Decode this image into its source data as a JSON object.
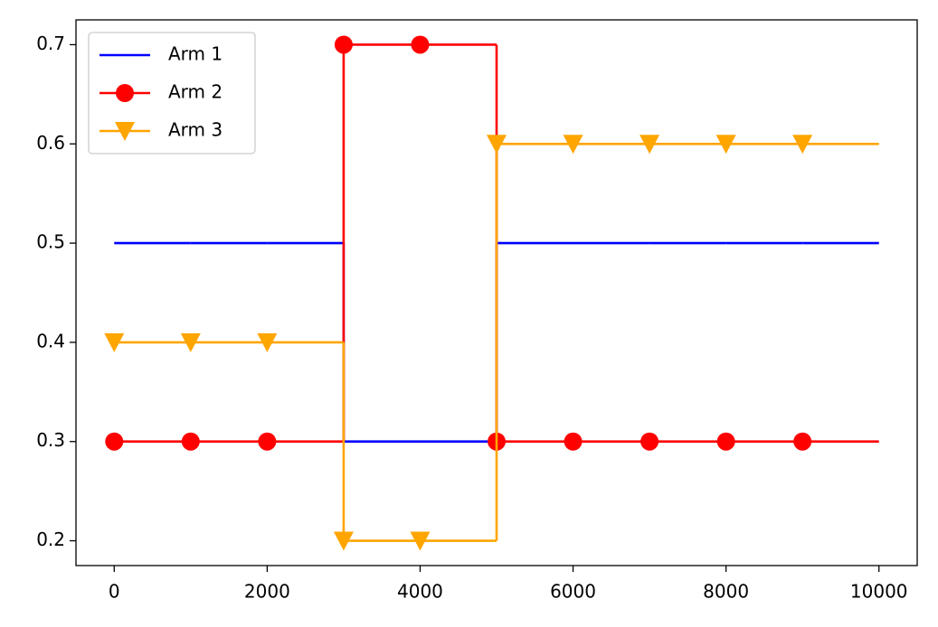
{
  "chart_data": {
    "type": "line",
    "drawstyle": "steps-post",
    "x": [
      0,
      1000,
      2000,
      3000,
      4000,
      5000,
      6000,
      7000,
      8000,
      9000,
      10000
    ],
    "markevery": [
      0,
      1,
      2,
      3,
      4,
      5,
      6,
      7,
      8,
      9
    ],
    "series": [
      {
        "name": "Arm 1",
        "color": "#0000ff",
        "marker": "none",
        "values": [
          0.5,
          0.5,
          0.5,
          0.3,
          0.3,
          0.5,
          0.5,
          0.5,
          0.5,
          0.5,
          0.5
        ]
      },
      {
        "name": "Arm 2",
        "color": "#ff0000",
        "marker": "circle",
        "values": [
          0.3,
          0.3,
          0.3,
          0.7,
          0.7,
          0.3,
          0.3,
          0.3,
          0.3,
          0.3,
          0.3
        ]
      },
      {
        "name": "Arm 3",
        "color": "#ffa500",
        "marker": "triangle-down",
        "values": [
          0.4,
          0.4,
          0.4,
          0.2,
          0.2,
          0.6,
          0.6,
          0.6,
          0.6,
          0.6,
          0.6
        ]
      }
    ],
    "xlim": [
      -500,
      10500
    ],
    "ylim": [
      0.175,
      0.725
    ],
    "xticks": [
      0,
      2000,
      4000,
      6000,
      8000,
      10000
    ],
    "yticks": [
      0.2,
      0.3,
      0.4,
      0.5,
      0.6,
      0.7
    ],
    "legend": "upper left",
    "grid": false
  }
}
